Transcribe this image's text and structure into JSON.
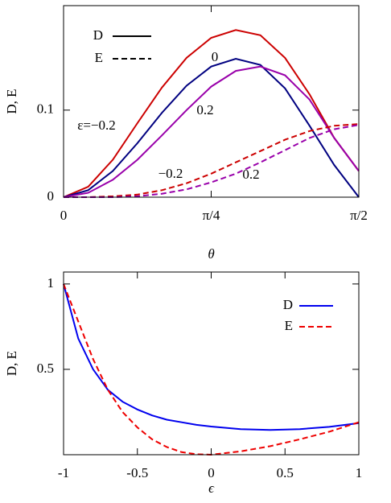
{
  "chart_data": [
    {
      "type": "line",
      "x_label": "θ",
      "y_label": "D, E",
      "x": [
        0,
        0.1309,
        0.2618,
        0.3927,
        0.5236,
        0.6545,
        0.7854,
        0.9163,
        1.0472,
        1.1781,
        1.309,
        1.4399,
        1.5708
      ],
      "xlim": [
        0,
        1.5708
      ],
      "ylim": [
        0,
        0.22
      ],
      "xticks": [
        0,
        {
          "value": 0.7854,
          "label": "π/4"
        },
        {
          "value": 1.5708,
          "label": "π/2"
        }
      ],
      "yticks": [
        0,
        0.1
      ],
      "series": [
        {
          "color": "#cc0000",
          "dashed": false,
          "values": [
            0,
            0.012,
            0.043,
            0.085,
            0.126,
            0.16,
            0.183,
            0.192,
            0.186,
            0.16,
            0.118,
            0.068,
            0.03
          ]
        },
        {
          "color": "#000080",
          "dashed": false,
          "values": [
            0,
            0.008,
            0.03,
            0.062,
            0.097,
            0.128,
            0.15,
            0.159,
            0.152,
            0.125,
            0.082,
            0.037,
            0
          ]
        },
        {
          "color": "#9900aa",
          "dashed": false,
          "values": [
            0,
            0.005,
            0.02,
            0.043,
            0.071,
            0.1,
            0.127,
            0.145,
            0.15,
            0.14,
            0.112,
            0.068,
            0.03
          ]
        },
        {
          "color": "#cc0000",
          "dashed": true,
          "values": [
            0,
            0,
            0.001,
            0.003,
            0.008,
            0.016,
            0.027,
            0.04,
            0.053,
            0.066,
            0.076,
            0.082,
            0.084
          ]
        },
        {
          "color": "#9900aa",
          "dashed": true,
          "values": [
            0,
            0,
            0,
            0.001,
            0.004,
            0.009,
            0.017,
            0.027,
            0.04,
            0.054,
            0.068,
            0.078,
            0.083
          ]
        }
      ],
      "legend": [
        {
          "name": "D",
          "color": "#000000",
          "dashed": false
        },
        {
          "name": "E",
          "color": "#000000",
          "dashed": true
        }
      ],
      "legend_position": "upper-left",
      "annotations": [
        "ε=−0.2",
        "0",
        "0.2",
        "−0.2",
        "0.2"
      ]
    },
    {
      "type": "line",
      "x_label": "ϵ",
      "y_label": "D, E",
      "x": [
        -1,
        -0.9,
        -0.8,
        -0.7,
        -0.6,
        -0.5,
        -0.4,
        -0.3,
        -0.2,
        -0.1,
        0,
        0.2,
        0.4,
        0.6,
        0.8,
        1
      ],
      "xlim": [
        -1,
        1
      ],
      "ylim": [
        0,
        1.07
      ],
      "xticks": [
        -1,
        -0.5,
        0,
        0.5,
        1
      ],
      "yticks": [
        0.5,
        1
      ],
      "series": [
        {
          "name": "D",
          "color": "#0000ee",
          "dashed": false,
          "values": [
            1.0,
            0.68,
            0.5,
            0.38,
            0.31,
            0.265,
            0.23,
            0.205,
            0.19,
            0.175,
            0.165,
            0.15,
            0.145,
            0.15,
            0.163,
            0.185
          ]
        },
        {
          "name": "E",
          "color": "#ee0000",
          "dashed": true,
          "values": [
            1.0,
            0.78,
            0.56,
            0.38,
            0.25,
            0.16,
            0.09,
            0.045,
            0.015,
            0.003,
            0,
            0.02,
            0.05,
            0.09,
            0.135,
            0.19
          ]
        }
      ],
      "legend_position": "upper-right"
    }
  ]
}
